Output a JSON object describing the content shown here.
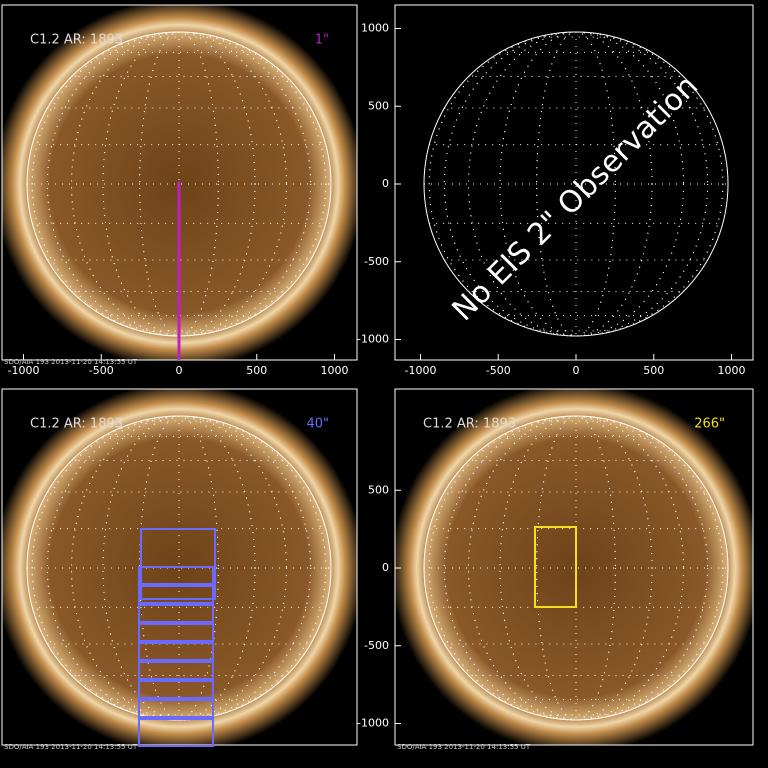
{
  "panels": [
    {
      "title": "C1.2 AR: 1893",
      "label": "1\"",
      "label_color": "#c020c0",
      "footer": "SDO/AIA 193 2013-11-20 14:13:55 UT",
      "xticks": [
        -1000,
        -500,
        0,
        500,
        1000
      ]
    },
    {
      "annotation": "No EIS 2\" Observation",
      "xticks": [
        -1000,
        -500,
        0,
        500,
        1000
      ],
      "yticks": [
        1000,
        500,
        0,
        -500,
        -1000
      ]
    },
    {
      "title": "C1.2 AR: 1893",
      "label": "40\"",
      "label_color": "#6a6aff",
      "footer": "SDO/AIA 193 2013-11-20 14:13:55 UT"
    },
    {
      "title": "C1.2 AR: 1893",
      "label": "266\"",
      "label_color": "#f0e020",
      "footer": "SDO/AIA 193 2013-11-20 14:13:55 UT",
      "yticks": [
        500,
        0,
        -500,
        -1000
      ]
    }
  ]
}
